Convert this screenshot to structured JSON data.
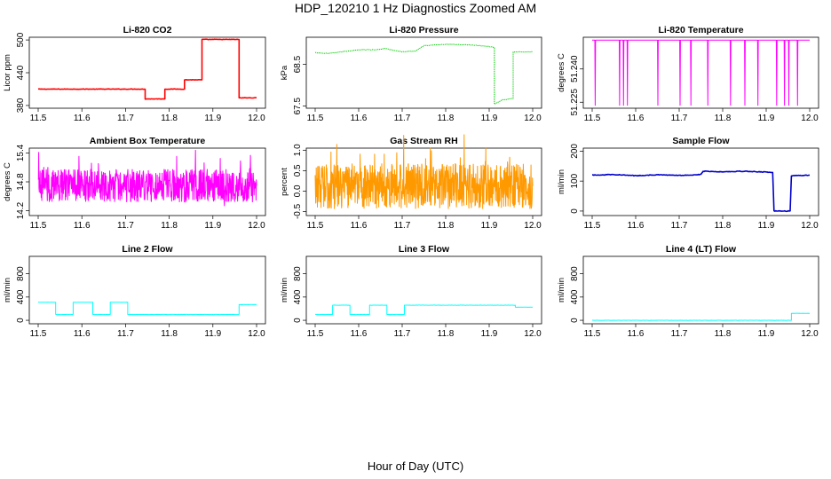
{
  "page": {
    "title": "HDP_120210  1 Hz Diagnostics Zoomed AM",
    "xaxis_title": "Hour of Day (UTC)"
  },
  "chart_data": [
    {
      "type": "line",
      "title": "Li-820 CO2",
      "ylabel": "Licor ppm",
      "color": "#ff0000",
      "xlim": [
        11.5,
        12.0
      ],
      "ylim": [
        375,
        505
      ],
      "yticks": [
        "380",
        "440",
        "500"
      ],
      "ytick_values": [
        380,
        440,
        500
      ],
      "xticks": [
        "11.5",
        "11.6",
        "11.7",
        "11.8",
        "11.9",
        "12.0"
      ],
      "noise": 0.8,
      "series": [
        {
          "name": "CO2",
          "points": [
            [
              11.5,
              410
            ],
            [
              11.745,
              410
            ],
            [
              11.745,
              392
            ],
            [
              11.79,
              392
            ],
            [
              11.79,
              410
            ],
            [
              11.835,
              410
            ],
            [
              11.835,
              427
            ],
            [
              11.875,
              427
            ],
            [
              11.875,
              501
            ],
            [
              11.96,
              501
            ],
            [
              11.96,
              394
            ],
            [
              12.0,
              394
            ]
          ]
        }
      ]
    },
    {
      "type": "line",
      "title": "Li-820 Pressure",
      "ylabel": "kPa",
      "color": "#00cc00",
      "xlim": [
        11.5,
        12.0
      ],
      "ylim": [
        67.45,
        69.15
      ],
      "yticks": [
        "67.5",
        "68.5"
      ],
      "ytick_values": [
        67.5,
        68.5
      ],
      "xticks": [
        "11.5",
        "11.6",
        "11.7",
        "11.8",
        "11.9",
        "12.0"
      ],
      "noise": 0.012,
      "series": [
        {
          "name": "Pressure",
          "points": [
            [
              11.5,
              68.78
            ],
            [
              11.53,
              68.76
            ],
            [
              11.56,
              68.8
            ],
            [
              11.6,
              68.85
            ],
            [
              11.64,
              68.85
            ],
            [
              11.66,
              68.88
            ],
            [
              11.7,
              68.8
            ],
            [
              11.73,
              68.82
            ],
            [
              11.75,
              68.95
            ],
            [
              11.8,
              68.98
            ],
            [
              11.85,
              68.97
            ],
            [
              11.9,
              68.93
            ],
            [
              11.912,
              68.9
            ],
            [
              11.912,
              67.55
            ],
            [
              11.93,
              67.65
            ],
            [
              11.955,
              67.68
            ],
            [
              11.955,
              68.8
            ],
            [
              12.0,
              68.8
            ]
          ]
        }
      ]
    },
    {
      "type": "line",
      "title": "Li-820 Temperature",
      "ylabel": "degrees C",
      "color": "#ff00ff",
      "xlim": [
        11.5,
        12.0
      ],
      "ylim": [
        51.2223,
        51.2543
      ],
      "yticks": [
        "51.225",
        "51.240"
      ],
      "ytick_values": [
        51.225,
        51.24
      ],
      "xticks": [
        "11.5",
        "11.6",
        "11.7",
        "11.8",
        "11.9",
        "12.0"
      ],
      "baseline": 51.253,
      "dip_bottom": 51.2236,
      "dips": [
        11.507,
        11.563,
        11.572,
        11.581,
        11.651,
        11.702,
        11.727,
        11.766,
        11.818,
        11.851,
        11.881,
        11.924,
        11.942,
        11.952,
        11.972
      ]
    },
    {
      "type": "line",
      "title": "Ambient Box Temperature",
      "ylabel": "degrees C",
      "color": "#ff00ff",
      "xlim": [
        11.5,
        12.0
      ],
      "ylim": [
        14.1,
        15.5
      ],
      "yticks": [
        "14.2",
        "14.8",
        "15.4"
      ],
      "ytick_values": [
        14.2,
        14.8,
        15.4
      ],
      "xticks": [
        "11.5",
        "11.6",
        "11.7",
        "11.8",
        "11.9",
        "12.0"
      ],
      "noise": 0.34,
      "mean": 14.72,
      "series": [
        {
          "name": "Ambient",
          "points": [
            [
              11.5,
              14.72
            ],
            [
              12.0,
              14.72
            ]
          ]
        }
      ]
    },
    {
      "type": "line",
      "title": "Gas Stream RH",
      "ylabel": "percent",
      "color": "#ff9900",
      "xlim": [
        11.5,
        12.0
      ],
      "ylim": [
        -0.6,
        1.05
      ],
      "yticks": [
        "-0.5",
        "0.0",
        "0.5",
        "1.0"
      ],
      "ytick_values": [
        -0.5,
        0.0,
        0.5,
        1.0
      ],
      "xticks": [
        "11.5",
        "11.6",
        "11.7",
        "11.8",
        "11.9",
        "12.0"
      ],
      "noise": 0.55,
      "mean": 0.12,
      "series": [
        {
          "name": "RH",
          "points": [
            [
              11.5,
              0.12
            ],
            [
              12.0,
              0.12
            ]
          ]
        }
      ]
    },
    {
      "type": "line",
      "title": "Sample Flow",
      "ylabel": "ml/min",
      "color": "#0000cc",
      "xlim": [
        11.5,
        12.0
      ],
      "ylim": [
        -15,
        210
      ],
      "yticks": [
        "0",
        "100",
        "200"
      ],
      "ytick_values": [
        0,
        100,
        200
      ],
      "xticks": [
        "11.5",
        "11.6",
        "11.7",
        "11.8",
        "11.9",
        "12.0"
      ],
      "noise": 2,
      "series": [
        {
          "name": "Sample",
          "points": [
            [
              11.5,
              120
            ],
            [
              11.55,
              122
            ],
            [
              11.6,
              118
            ],
            [
              11.65,
              121
            ],
            [
              11.7,
              119
            ],
            [
              11.75,
              122
            ],
            [
              11.755,
              133
            ],
            [
              11.8,
              131
            ],
            [
              11.85,
              133
            ],
            [
              11.9,
              130
            ],
            [
              11.915,
              128
            ],
            [
              11.918,
              0
            ],
            [
              11.955,
              0
            ],
            [
              11.958,
              118
            ],
            [
              12.0,
              120
            ]
          ]
        }
      ]
    },
    {
      "type": "line",
      "title": "Line 2 Flow",
      "ylabel": "ml/min",
      "color": "#00ffff",
      "xlim": [
        11.5,
        12.0
      ],
      "ylim": [
        -60,
        1100
      ],
      "yticks": [
        "0",
        "400",
        "800"
      ],
      "ytick_values": [
        0,
        400,
        800
      ],
      "xticks": [
        "11.5",
        "11.6",
        "11.7",
        "11.8",
        "11.9",
        "12.0"
      ],
      "noise": 4,
      "series": [
        {
          "name": "Line2",
          "points": [
            [
              11.5,
              310
            ],
            [
              11.54,
              310
            ],
            [
              11.54,
              100
            ],
            [
              11.58,
              100
            ],
            [
              11.58,
              310
            ],
            [
              11.625,
              310
            ],
            [
              11.625,
              100
            ],
            [
              11.665,
              100
            ],
            [
              11.665,
              310
            ],
            [
              11.705,
              310
            ],
            [
              11.705,
              100
            ],
            [
              11.96,
              100
            ],
            [
              11.96,
              270
            ],
            [
              12.0,
              270
            ]
          ]
        }
      ]
    },
    {
      "type": "line",
      "title": "Line 3 Flow",
      "ylabel": "ml/min",
      "color": "#00ffff",
      "xlim": [
        11.5,
        12.0
      ],
      "ylim": [
        -60,
        1100
      ],
      "yticks": [
        "0",
        "400",
        "800"
      ],
      "ytick_values": [
        0,
        400,
        800
      ],
      "xticks": [
        "11.5",
        "11.6",
        "11.7",
        "11.8",
        "11.9",
        "12.0"
      ],
      "noise": 4,
      "series": [
        {
          "name": "Line3",
          "points": [
            [
              11.5,
              100
            ],
            [
              11.54,
              100
            ],
            [
              11.54,
              260
            ],
            [
              11.58,
              260
            ],
            [
              11.58,
              100
            ],
            [
              11.625,
              100
            ],
            [
              11.625,
              260
            ],
            [
              11.665,
              260
            ],
            [
              11.665,
              100
            ],
            [
              11.705,
              100
            ],
            [
              11.705,
              260
            ],
            [
              11.96,
              260
            ],
            [
              11.96,
              225
            ],
            [
              12.0,
              225
            ]
          ]
        }
      ]
    },
    {
      "type": "line",
      "title": "Line 4 (LT) Flow",
      "ylabel": "ml/min",
      "color": "#00ffff",
      "xlim": [
        11.5,
        12.0
      ],
      "ylim": [
        -60,
        1100
      ],
      "yticks": [
        "0",
        "400",
        "800"
      ],
      "ytick_values": [
        0,
        400,
        800
      ],
      "xticks": [
        "11.5",
        "11.6",
        "11.7",
        "11.8",
        "11.9",
        "12.0"
      ],
      "noise": 3,
      "series": [
        {
          "name": "Line4",
          "points": [
            [
              11.5,
              0
            ],
            [
              11.958,
              0
            ],
            [
              11.958,
              120
            ],
            [
              12.0,
              120
            ]
          ]
        }
      ]
    }
  ]
}
